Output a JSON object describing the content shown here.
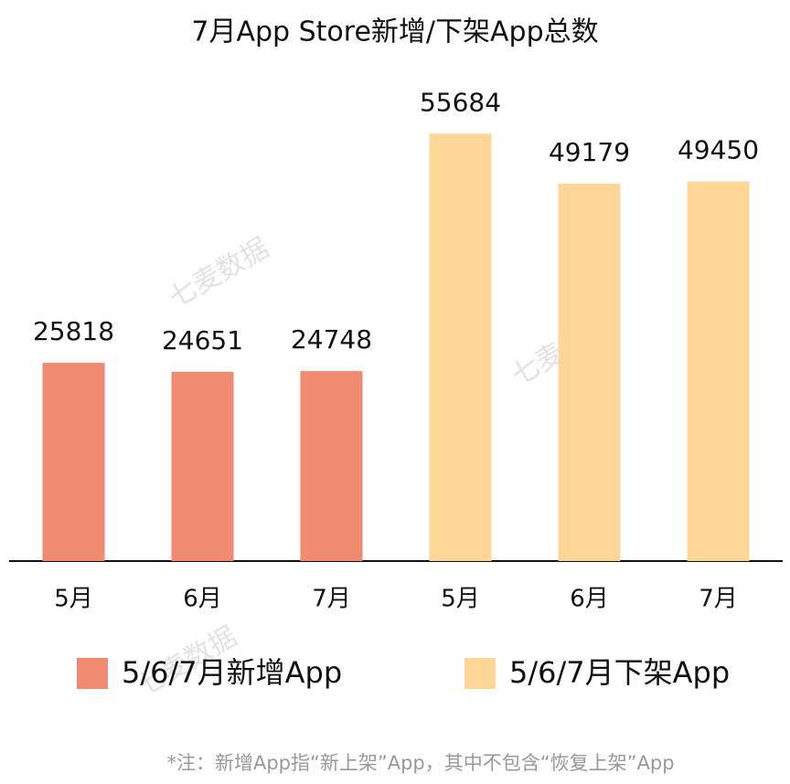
{
  "chart_data": {
    "type": "bar",
    "title": "7月App Store新增/下架App总数",
    "categories": [
      "5月",
      "6月",
      "7月",
      "5月",
      "6月",
      "7月"
    ],
    "series": [
      {
        "name": "5/6/7月新增App",
        "color": "#f08a70",
        "values": [
          25818,
          24651,
          24748,
          null,
          null,
          null
        ]
      },
      {
        "name": "5/6/7月下架App",
        "color": "#fdd698",
        "values": [
          null,
          null,
          null,
          55684,
          49179,
          49450
        ]
      }
    ],
    "ylim": [
      0,
      60000
    ],
    "watermark": "七麦数据",
    "footnote": "*注：新增App指“新上架”App，其中不包含“恢复上架”App"
  }
}
